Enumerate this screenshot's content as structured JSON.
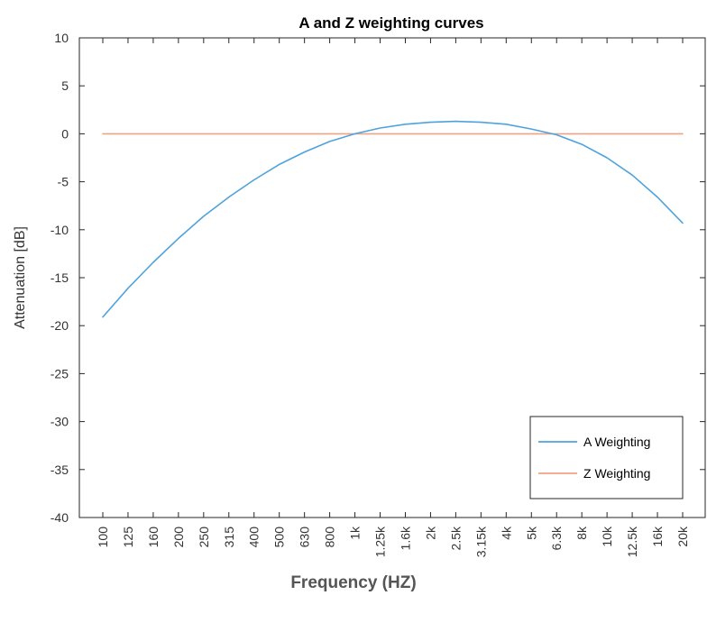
{
  "chart_data": {
    "type": "line",
    "title": "A and Z weighting curves",
    "xlabel": "Frequency (HZ)",
    "ylabel": "Attenuation [dB]",
    "ylim": [
      -40,
      10
    ],
    "yticks": [
      10,
      5,
      0,
      -5,
      -10,
      -15,
      -20,
      -25,
      -30,
      -35,
      -40
    ],
    "categories": [
      "100",
      "125",
      "160",
      "200",
      "250",
      "315",
      "400",
      "500",
      "630",
      "800",
      "1k",
      "1.25k",
      "1.6k",
      "2k",
      "2.5k",
      "3.15k",
      "4k",
      "5k",
      "6.3k",
      "8k",
      "10k",
      "12.5k",
      "16k",
      "20k"
    ],
    "series": [
      {
        "name": "A Weighting",
        "color": "#4fa3dc",
        "values": [
          -19.1,
          -16.1,
          -13.4,
          -10.9,
          -8.6,
          -6.6,
          -4.8,
          -3.2,
          -1.9,
          -0.8,
          0.0,
          0.6,
          1.0,
          1.2,
          1.3,
          1.2,
          1.0,
          0.5,
          -0.1,
          -1.1,
          -2.5,
          -4.3,
          -6.6,
          -9.3
        ]
      },
      {
        "name": "Z Weighting",
        "color": "#f0a285",
        "values": [
          0,
          0,
          0,
          0,
          0,
          0,
          0,
          0,
          0,
          0,
          0,
          0,
          0,
          0,
          0,
          0,
          0,
          0,
          0,
          0,
          0,
          0,
          0,
          0
        ]
      }
    ],
    "legend_position": "bottom-right",
    "grid": false
  }
}
